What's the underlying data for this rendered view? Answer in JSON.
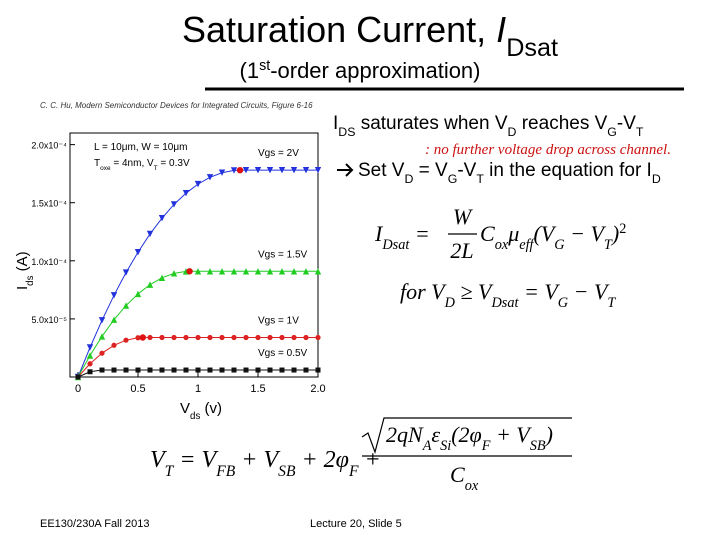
{
  "header": {
    "title": {
      "text": "Saturation Current, ",
      "symbol": "I",
      "subscript": "Dsat"
    },
    "subtitle": {
      "pre": "(1",
      "sup": "st",
      "post": "-order approximation)"
    }
  },
  "citation": "C. C. Hu, Modern Semiconductor Devices for Integrated Circuits, Figure 6-16",
  "bullets": [
    {
      "segments": [
        "I",
        "DS",
        " saturates when V",
        "D",
        " reaches V",
        "G",
        "-V",
        "T"
      ]
    },
    {
      "segments": [
        "Set V",
        "D",
        " = V",
        "G",
        "-V",
        "T",
        " in the equation for I",
        "D"
      ]
    }
  ],
  "annotation": ": no further voltage drop across channel.",
  "chart_data": {
    "type": "line",
    "x_label": [
      "V",
      "ds",
      " (v)"
    ],
    "y_label": [
      "I",
      "ds",
      " (A)"
    ],
    "info": [
      [
        "L = 10μm, W = 10μm"
      ],
      [
        "T",
        "oxe",
        " = 4nm, V",
        "T",
        " = 0.3V"
      ]
    ],
    "x": [
      0,
      0.1,
      0.2,
      0.3,
      0.4,
      0.5,
      0.6,
      0.7,
      0.8,
      0.9,
      1.0,
      1.1,
      1.2,
      1.3,
      1.4,
      1.5,
      1.6,
      1.7,
      1.8,
      1.9,
      2.0
    ],
    "xlim": [
      0,
      2
    ],
    "xticks": [
      0,
      0.5,
      1,
      1.5,
      {
        "value": 2,
        "label": "2.0"
      }
    ],
    "ylim": [
      0,
      0.00021
    ],
    "yticks": [
      {
        "value": 5e-05,
        "label": "5.0x10⁻⁵"
      },
      {
        "value": 0.0001,
        "label": "1.0x10⁻⁴"
      },
      {
        "value": 0.00015,
        "label": "1.5x10⁻⁴"
      },
      {
        "value": 0.0002,
        "label": "2.0x10⁻⁴"
      }
    ],
    "series": [
      {
        "name": "Vgs = 2V",
        "color": "#2233dd",
        "marker": "triangle-down",
        "values": [
          0,
          2.54e-05,
          4.88e-05,
          7.03e-05,
          8.99e-05,
          0.0001074,
          0.0001231,
          0.0001367,
          0.0001485,
          0.0001582,
          0.000166,
          0.0001719,
          0.0001758,
          0.0001778,
          0.000178,
          0.000178,
          0.000178,
          0.000178,
          0.000178,
          0.000178,
          0.000178
        ]
      },
      {
        "name": "Vgs = 1.5V",
        "color": "#22cc22",
        "marker": "triangle-up",
        "values": [
          0,
          1.85e-05,
          3.49e-05,
          4.93e-05,
          6.15e-05,
          7.15e-05,
          7.95e-05,
          8.54e-05,
          8.92e-05,
          9.09e-05,
          9.1e-05,
          9.1e-05,
          9.1e-05,
          9.1e-05,
          9.1e-05,
          9.1e-05,
          9.1e-05,
          9.1e-05,
          9.1e-05,
          9.1e-05,
          9.1e-05
        ]
      },
      {
        "name": "Vgs = 1V",
        "color": "#dd2222",
        "marker": "circle",
        "values": [
          0,
          1.14e-05,
          2.05e-05,
          2.73e-05,
          3.17e-05,
          3.38e-05,
          3.4e-05,
          3.4e-05,
          3.4e-05,
          3.4e-05,
          3.4e-05,
          3.4e-05,
          3.4e-05,
          3.4e-05,
          3.4e-05,
          3.4e-05,
          3.4e-05,
          3.4e-05,
          3.4e-05,
          3.4e-05,
          3.4e-05
        ]
      },
      {
        "name": "Vgs = 0.5V",
        "color": "#111111",
        "marker": "square",
        "values": [
          0,
          4.5e-06,
          6e-06,
          6e-06,
          6e-06,
          6e-06,
          6e-06,
          6e-06,
          6e-06,
          6e-06,
          6e-06,
          6e-06,
          6e-06,
          6e-06,
          6e-06,
          6e-06,
          6e-06,
          6e-06,
          6e-06,
          6e-06,
          6e-06
        ]
      }
    ],
    "vdsat_points": {
      "color": "#e01010",
      "x": [
        1.35,
        0.93,
        0.54
      ],
      "values": [
        0.000178,
        9.1e-05,
        3.4e-05
      ]
    }
  },
  "equations": {
    "eq1": {
      "lhs": [
        "I",
        "Dsat",
        " = "
      ],
      "num": "W",
      "den": "2L",
      "rhs": [
        "C",
        "ox",
        "μ",
        "eff",
        "(V",
        "G",
        " − V",
        "T",
        ")"
      ],
      "power": "2"
    },
    "eq2": {
      "segments": [
        "for V",
        "D",
        " ≥ V",
        "Dsat",
        " = V",
        "G",
        " − V",
        "T"
      ]
    },
    "eq3": {
      "lhs": [
        "V",
        "T",
        " = V",
        "FB",
        " + V",
        "SB",
        " + 2φ",
        "F",
        " + "
      ],
      "num": [
        "2qN",
        "A",
        "ε",
        "Si",
        "(2φ",
        "F",
        " + V",
        "SB",
        ")"
      ],
      "den": [
        "C",
        "ox"
      ]
    }
  },
  "footer": {
    "left": "EE130/230A Fall 2013",
    "center": "Lecture 20, Slide 5"
  }
}
